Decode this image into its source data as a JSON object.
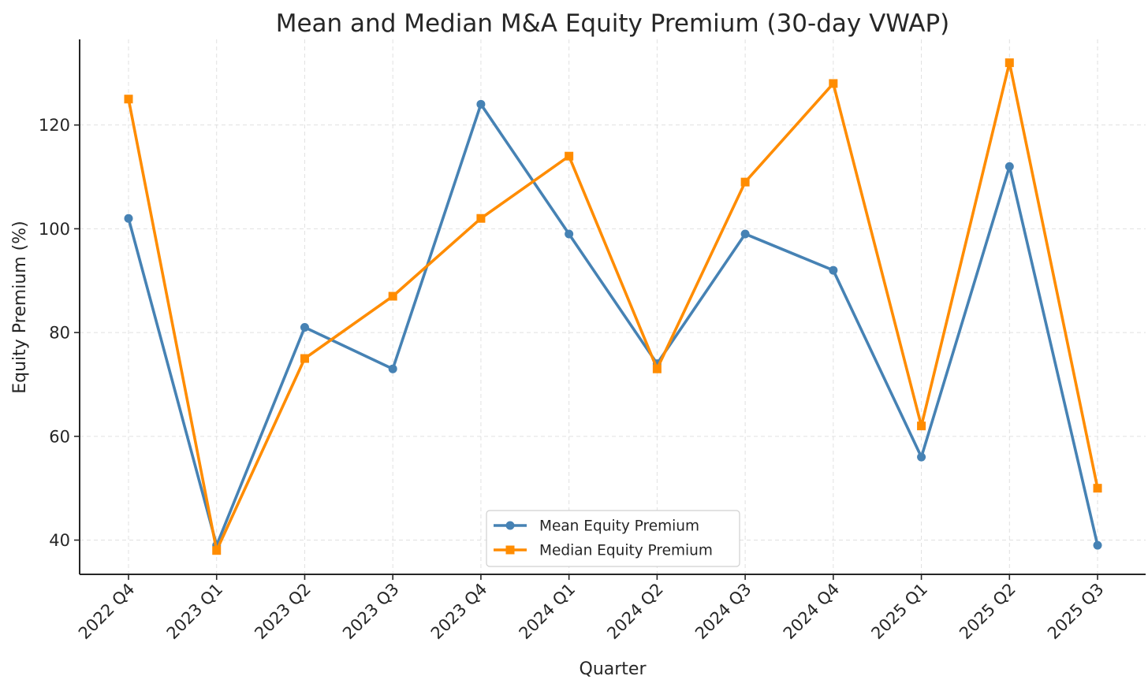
{
  "chart_data": {
    "type": "line",
    "title": "Mean and Median M&A Equity Premium (30-day VWAP)",
    "xlabel": "Quarter",
    "ylabel": "Equity Premium (%)",
    "categories": [
      "2022 Q4",
      "2023 Q1",
      "2023 Q2",
      "2023 Q3",
      "2023 Q4",
      "2024 Q1",
      "2024 Q2",
      "2024 Q3",
      "2024 Q4",
      "2025 Q1",
      "2025 Q2",
      "2025 Q3"
    ],
    "ylim": [
      33.4,
      136.5
    ],
    "yticks": [
      40,
      60,
      80,
      100,
      120
    ],
    "grid": true,
    "legend_position": "bottom-center",
    "series": [
      {
        "name": "Mean Equity Premium",
        "color": "#4682b4",
        "marker": "circle",
        "values": [
          102,
          39,
          81,
          73,
          124,
          99,
          74,
          99,
          92,
          56,
          112,
          39
        ]
      },
      {
        "name": "Median Equity Premium",
        "color": "#ff8c00",
        "marker": "square",
        "values": [
          125,
          38,
          75,
          87,
          102,
          114,
          73,
          109,
          128,
          62,
          132,
          50
        ]
      }
    ]
  }
}
